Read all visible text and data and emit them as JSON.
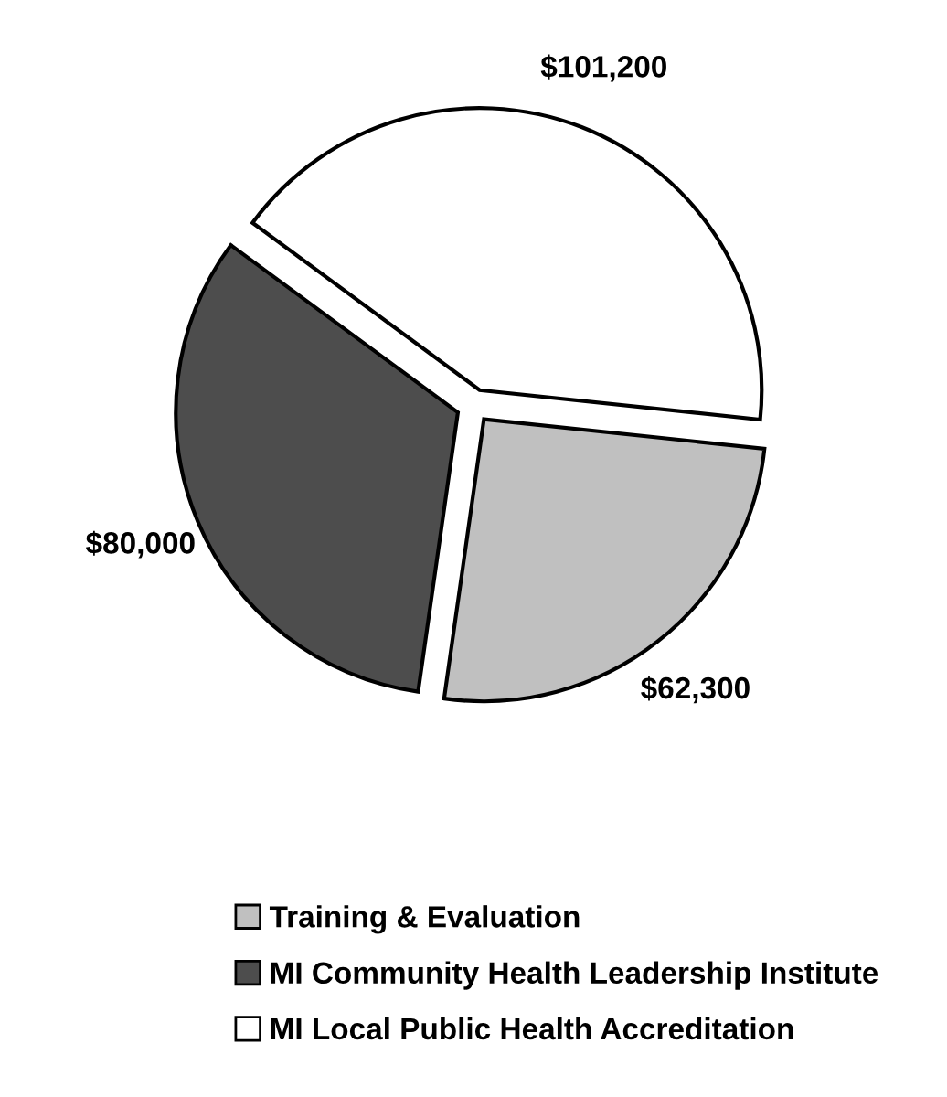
{
  "chart_data": {
    "type": "pie",
    "categories": [
      "Training & Evaluation",
      "MI Community Health Leadership Institute",
      "MI Local Public Health Accreditation"
    ],
    "values": [
      62300,
      80000,
      101200
    ],
    "colors": [
      "#c0c0c0",
      "#4d4d4d",
      "#ffffff"
    ],
    "value_labels": [
      "$62,300",
      "$80,000",
      "$101,200"
    ],
    "legend": "bottom"
  }
}
